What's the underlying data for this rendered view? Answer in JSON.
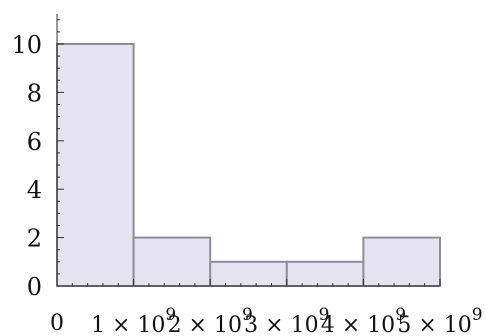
{
  "chart_data": {
    "type": "bar",
    "title": "",
    "xlabel": "",
    "ylabel": "",
    "x_tick_labels": [
      "0",
      "1 × 10^9",
      "2 × 10^9",
      "3 × 10^9",
      "4 × 10^9",
      "5 × 10^9"
    ],
    "x_tick_values": [
      0,
      1000000000,
      2000000000,
      3000000000,
      4000000000,
      5000000000
    ],
    "bins": [
      {
        "from": 0,
        "to": 1000000000,
        "count": 10
      },
      {
        "from": 1000000000,
        "to": 2000000000,
        "count": 2
      },
      {
        "from": 2000000000,
        "to": 3000000000,
        "count": 1
      },
      {
        "from": 3000000000,
        "to": 4000000000,
        "count": 1
      },
      {
        "from": 4000000000,
        "to": 5000000000,
        "count": 2
      }
    ],
    "y_ticks": [
      0,
      2,
      4,
      6,
      8,
      10
    ],
    "ylim": [
      0,
      11
    ],
    "xlim": [
      0,
      5000000000
    ],
    "grid": false,
    "colors": {
      "bar_fill": "#e4e3ef",
      "bar_stroke": "#8f8d96",
      "axis": "#333333"
    }
  }
}
